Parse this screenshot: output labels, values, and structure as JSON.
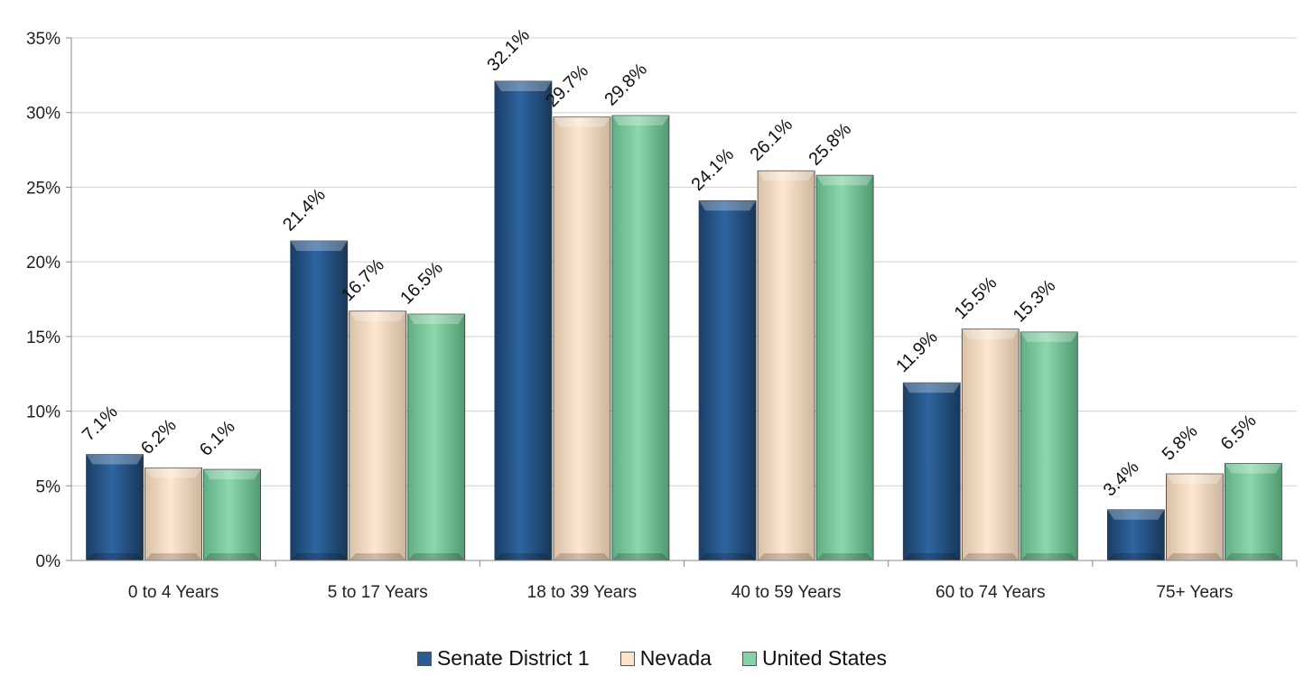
{
  "chart_data": {
    "type": "bar",
    "title": "",
    "xlabel": "",
    "ylabel": "",
    "categories": [
      "0 to 4 Years",
      "5 to 17 Years",
      "18 to 39 Years",
      "40 to 59 Years",
      "60 to 74 Years",
      "75+ Years"
    ],
    "series": [
      {
        "name": "Senate District 1",
        "color": "#2B5C91",
        "values": [
          7.1,
          21.4,
          32.1,
          24.1,
          11.9,
          3.4
        ]
      },
      {
        "name": "Nevada",
        "color": "#FCE4CC",
        "values": [
          6.2,
          16.7,
          29.7,
          26.1,
          15.5,
          5.8
        ]
      },
      {
        "name": "United States",
        "color": "#86D2A6",
        "values": [
          6.1,
          16.5,
          29.8,
          25.8,
          15.3,
          6.5
        ]
      }
    ],
    "ylim": [
      0,
      35
    ],
    "yticks": [
      "0%",
      "5%",
      "10%",
      "15%",
      "20%",
      "25%",
      "30%",
      "35%"
    ],
    "value_format": "percent-1-decimal",
    "grid": true,
    "legend_position": "bottom"
  }
}
